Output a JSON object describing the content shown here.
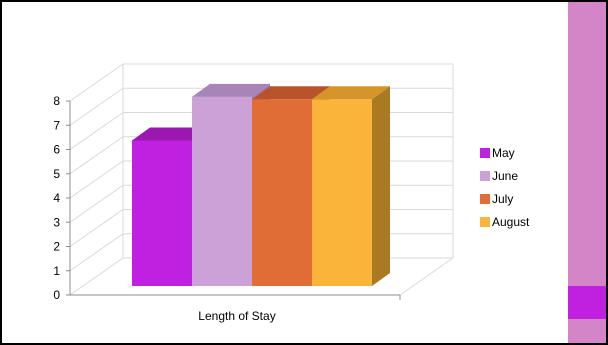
{
  "colors": {
    "side_band": "#d385c8",
    "side_accent": "#c020df",
    "gridline": "#d9d9d9",
    "axis": "#8c8c8c"
  },
  "chart_data": {
    "type": "bar",
    "style": "3d-clustered-column",
    "categories": [
      "Length of Stay"
    ],
    "series": [
      {
        "name": "May",
        "values": [
          6
        ],
        "color": "#c020df",
        "top_color": "#9a18b0",
        "side_color": "#8a1aa0"
      },
      {
        "name": "June",
        "values": [
          7.8
        ],
        "color": "#cca1d8",
        "top_color": "#a884b8",
        "side_color": "#a07cb0"
      },
      {
        "name": "July",
        "values": [
          7.7
        ],
        "color": "#e06c36",
        "top_color": "#b9542a",
        "side_color": "#a74a26"
      },
      {
        "name": "August",
        "values": [
          7.7
        ],
        "color": "#fbb43a",
        "top_color": "#d5952b",
        "side_color": "#a97a22"
      }
    ],
    "title": "",
    "xlabel": "",
    "ylabel": "",
    "ylim": [
      0,
      8
    ],
    "yticks": [
      "0",
      "1",
      "2",
      "3",
      "4",
      "5",
      "6",
      "7",
      "8"
    ],
    "grid": true,
    "legend_position": "right"
  }
}
